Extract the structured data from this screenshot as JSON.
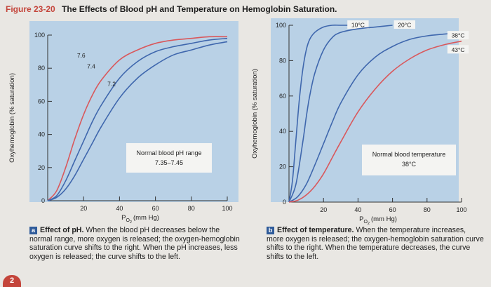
{
  "figure": {
    "label": "Figure 23-20",
    "title": "The Effects of Blood pH and Temperature on Hemoglobin Saturation.",
    "corner_mark": "2"
  },
  "colors": {
    "red_curve": "#d9585c",
    "blue_curve": "#3f67ad",
    "panel_bg": "#b9d1e6",
    "box_bg": "#f4f4f2"
  },
  "chart_data": [
    {
      "type": "line",
      "panel": "a",
      "title": "",
      "xlabel": "P_O2 (mm Hg)",
      "xlabel_main": "P",
      "xlabel_sub": "O",
      "xlabel_sub2": "2",
      "xlabel_unit": "(mm Hg)",
      "ylabel": "Oxyhemoglobin (% saturation)",
      "xlim": [
        0,
        100
      ],
      "ylim": [
        0,
        100
      ],
      "xticks": [
        20,
        40,
        60,
        80,
        100
      ],
      "yticks": [
        0,
        20,
        40,
        60,
        80,
        100
      ],
      "grid": false,
      "series": [
        {
          "name": "7.6",
          "color": "#d9585c",
          "x": [
            0,
            5,
            10,
            15,
            20,
            25,
            30,
            40,
            50,
            60,
            70,
            80,
            90,
            100
          ],
          "y": [
            0,
            6,
            20,
            37,
            52,
            64,
            73,
            85,
            91,
            95,
            97,
            98,
            99,
            99
          ]
        },
        {
          "name": "7.4",
          "color": "#3f67ad",
          "x": [
            0,
            5,
            10,
            15,
            20,
            25,
            30,
            40,
            50,
            60,
            70,
            80,
            90,
            100
          ],
          "y": [
            0,
            3,
            12,
            24,
            36,
            48,
            58,
            74,
            84,
            90,
            93,
            95,
            97,
            98
          ]
        },
        {
          "name": "7.2",
          "color": "#3f67ad",
          "x": [
            0,
            5,
            10,
            15,
            20,
            25,
            30,
            40,
            50,
            60,
            70,
            80,
            90,
            100
          ],
          "y": [
            0,
            2,
            7,
            15,
            25,
            35,
            45,
            62,
            74,
            82,
            88,
            91,
            94,
            96
          ]
        }
      ],
      "annotation_box": {
        "text_line1": "Normal blood pH range",
        "text_line2": "7.35–7.45"
      }
    },
    {
      "type": "line",
      "panel": "b",
      "title": "",
      "xlabel": "P_O2 (mm Hg)",
      "xlabel_main": "P",
      "xlabel_sub": "O",
      "xlabel_sub2": "2",
      "xlabel_unit": "(mm Hg)",
      "ylabel": "Oxyhemoglobin (% saturation)",
      "xlim": [
        0,
        100
      ],
      "ylim": [
        0,
        100
      ],
      "xticks": [
        20,
        40,
        60,
        80,
        100
      ],
      "yticks": [
        0,
        20,
        40,
        60,
        80,
        100
      ],
      "grid": false,
      "series": [
        {
          "name": "10°C",
          "color": "#3f67ad",
          "x": [
            0,
            2,
            4,
            6,
            8,
            10,
            12,
            15,
            20,
            25,
            30,
            40
          ],
          "y": [
            0,
            12,
            35,
            58,
            75,
            86,
            92,
            96,
            99,
            100,
            100,
            100
          ]
        },
        {
          "name": "20°C",
          "color": "#3f67ad",
          "x": [
            0,
            4,
            8,
            10,
            12,
            15,
            20,
            25,
            30,
            40,
            50,
            60
          ],
          "y": [
            0,
            10,
            34,
            48,
            60,
            73,
            86,
            93,
            96,
            98,
            99,
            100
          ]
        },
        {
          "name": "38°C",
          "color": "#3f67ad",
          "x": [
            0,
            5,
            10,
            15,
            20,
            25,
            30,
            40,
            50,
            60,
            70,
            80,
            90,
            100
          ],
          "y": [
            0,
            3,
            10,
            21,
            33,
            45,
            56,
            72,
            82,
            88,
            92,
            94,
            95,
            96
          ]
        },
        {
          "name": "43°C",
          "color": "#d9585c",
          "x": [
            0,
            5,
            10,
            15,
            20,
            25,
            30,
            40,
            50,
            60,
            70,
            80,
            90,
            100
          ],
          "y": [
            0,
            1,
            4,
            9,
            16,
            25,
            34,
            51,
            64,
            74,
            81,
            86,
            89,
            91
          ]
        }
      ],
      "annotation_box": {
        "text_line1": "Normal blood temperature",
        "text_line2": "38°C"
      }
    }
  ],
  "captions": {
    "a": {
      "marker": "a",
      "title": "Effect of pH.",
      "body": "When the blood pH decreases below the normal range, more oxygen is released; the oxygen-hemoglobin saturation curve shifts to the right. When the pH increases, less oxygen is released; the curve shifts to the left."
    },
    "b": {
      "marker": "b",
      "title": "Effect of temperature.",
      "body": "When the temperature increases, more oxygen is released; the oxygen-hemoglobin saturation curve shifts to the right. When the temperature decreases, the curve shifts to the left."
    }
  }
}
